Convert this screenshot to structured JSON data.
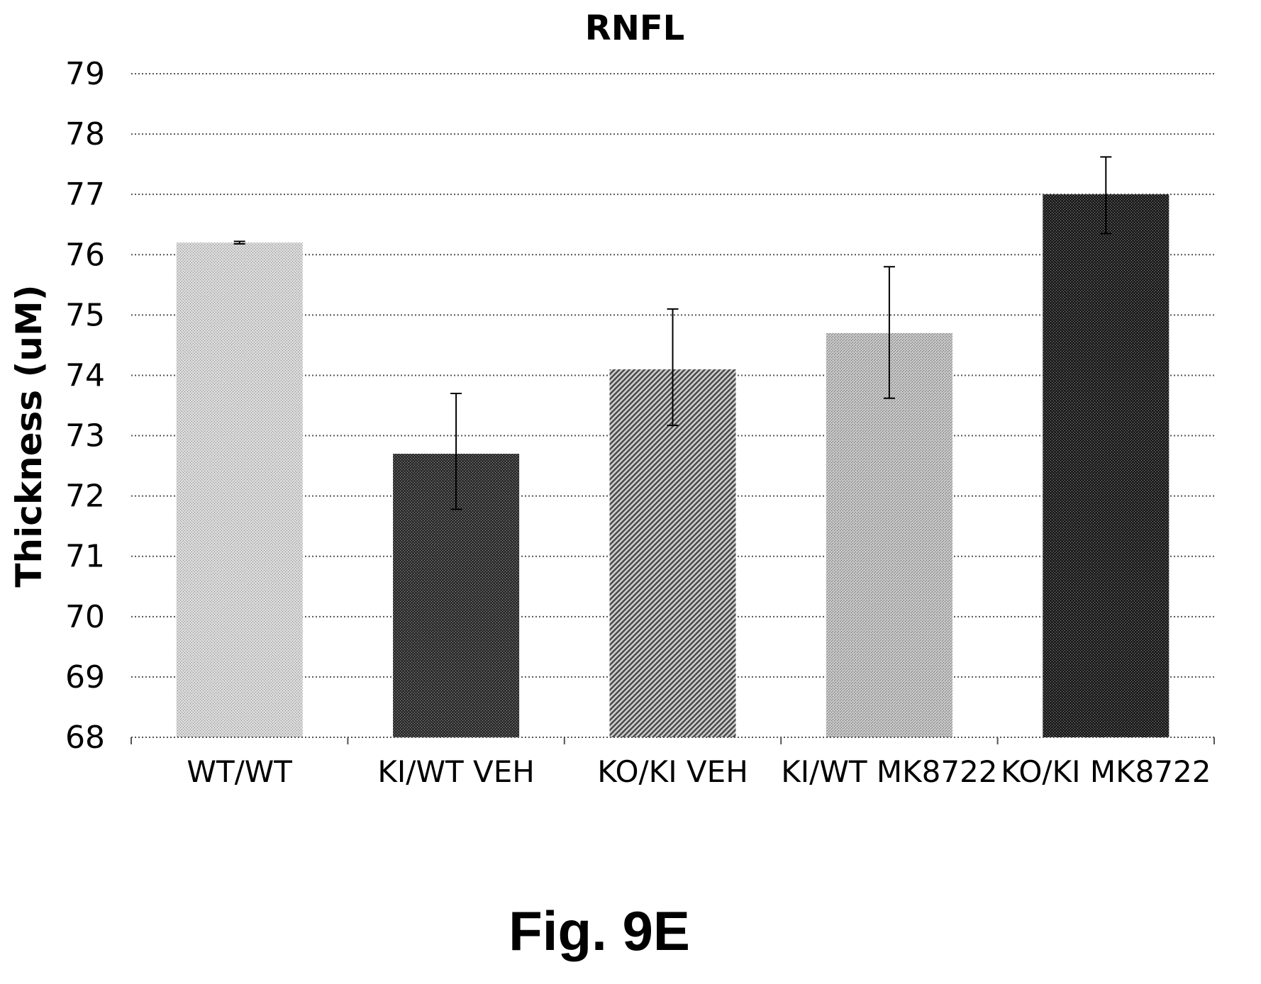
{
  "figure_label": "Fig. 9E",
  "chart_data": {
    "type": "bar",
    "title": "RNFL",
    "xlabel": "",
    "ylabel": "Thickness (uM)",
    "ylim": [
      68,
      79
    ],
    "yticks": [
      68,
      69,
      70,
      71,
      72,
      73,
      74,
      75,
      76,
      77,
      78,
      79
    ],
    "grid": true,
    "grid_style": "dotted",
    "categories": [
      "WT/WT",
      "KI/WT VEH",
      "KO/KI VEH",
      "KI/WT MK8722",
      "KO/KI MK8722"
    ],
    "values": [
      76.2,
      72.7,
      74.1,
      74.7,
      77.0
    ],
    "error_upper": [
      76.22,
      73.7,
      75.1,
      75.8,
      77.62
    ],
    "error_lower": [
      76.18,
      71.78,
      73.17,
      73.62,
      76.35
    ],
    "bar_patterns": [
      "fine-dots-light",
      "crosshatch-dark",
      "diagonal-medium",
      "crosshatch-light",
      "crosshatch-darkest"
    ]
  }
}
